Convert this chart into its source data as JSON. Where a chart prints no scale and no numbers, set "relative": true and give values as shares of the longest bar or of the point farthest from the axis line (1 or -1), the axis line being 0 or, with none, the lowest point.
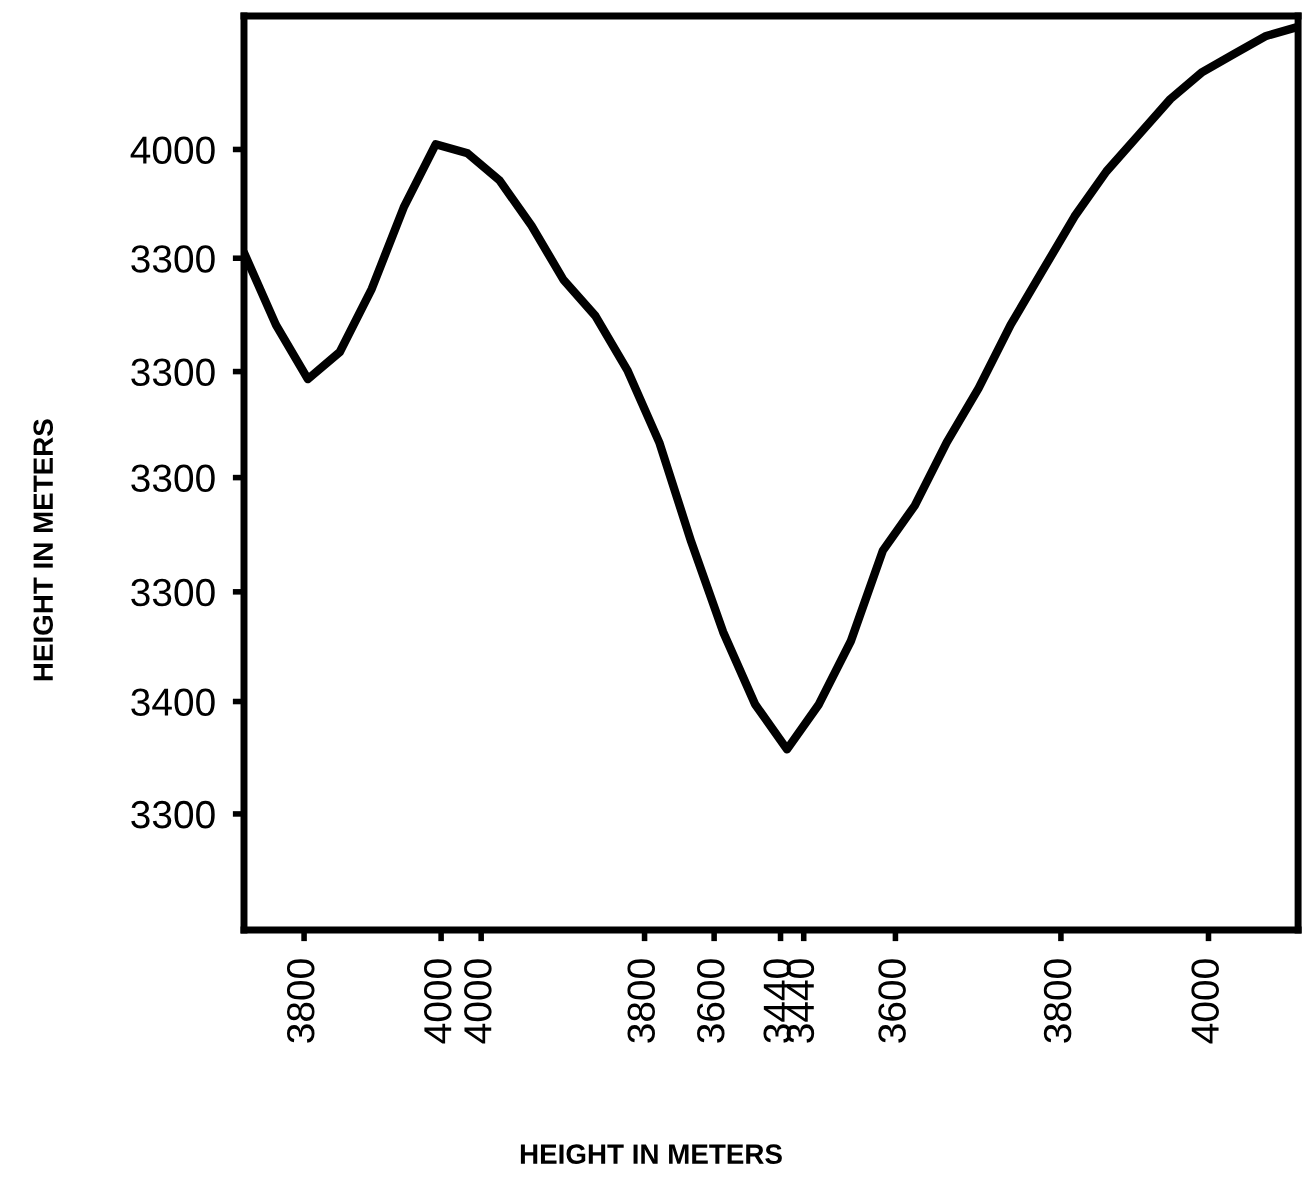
{
  "chart_data": {
    "type": "line",
    "relative": true,
    "categories": [
      null,
      null,
      null,
      null,
      null,
      null,
      null,
      null,
      null,
      null,
      null,
      null,
      null,
      null,
      null,
      null,
      null,
      null,
      null,
      null,
      null,
      null,
      null,
      null,
      null,
      null,
      null,
      null,
      null,
      null,
      null,
      null,
      null,
      null
    ],
    "series": [
      {
        "color": "#000000",
        "values": [
          0.75,
          0.67,
          0.61,
          0.64,
          0.71,
          0.8,
          0.87,
          0.86,
          0.83,
          0.78,
          0.72,
          0.68,
          0.62,
          0.54,
          0.43,
          0.33,
          0.25,
          0.2,
          0.25,
          0.32,
          0.42,
          0.47,
          0.54,
          0.6,
          0.67,
          0.73,
          0.79,
          0.84,
          0.88,
          0.92,
          0.95,
          0.97,
          0.99,
          1.0
        ]
      }
    ],
    "annotations": [
      "4000",
      "3300",
      "3300",
      "3300",
      "3300",
      "3400",
      "3300",
      "3800",
      "4000",
      "4000",
      "3800",
      "3600",
      "3440",
      "3440",
      "3600",
      "3800",
      "4000",
      "HEIGHT IN METERS",
      "HEIGHT IN METERS"
    ],
    "line_style": "solid",
    "marker": "none"
  }
}
